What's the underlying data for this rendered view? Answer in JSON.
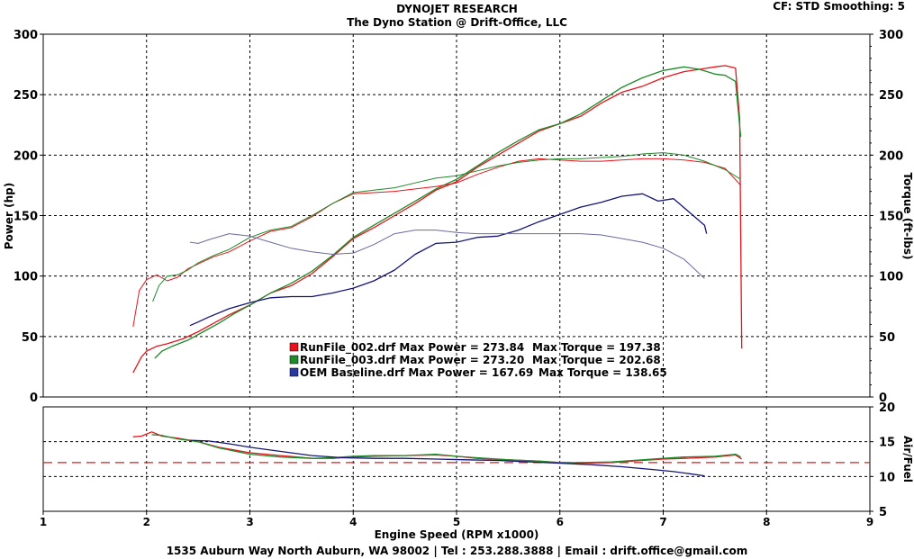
{
  "header": {
    "title": "DYNOJET RESEARCH",
    "subtitle": "The Dyno Station @ Drift-Office, LLC",
    "settings": "CF: STD  Smoothing: 5"
  },
  "footer": "1535 Auburn Way North Auburn, WA 98002 | Tel : 253.288.3888 | Email : drift.office@gmail.com",
  "colors": {
    "run002": "#e8141c",
    "run003": "#1f8a2a",
    "oem": "#141478",
    "afr_target": "#d02020"
  },
  "legend": [
    {
      "text": "RunFile_002.drf Max Power = 273.84",
      "torque": "Max Torque = 197.38",
      "color": "#e8141c"
    },
    {
      "text": "RunFile_003.drf Max Power = 273.20",
      "torque": "Max Torque = 202.68",
      "color": "#1f8a2a"
    },
    {
      "text": "OEM Baseline.drf Max Power = 167.69",
      "torque": "Max Torque = 138.65",
      "color": "#2838a0"
    }
  ],
  "chart_data": [
    {
      "type": "line",
      "panel": "power-torque",
      "xlabel": "Engine Speed (RPM x1000)",
      "ylabel": "Power (hp)",
      "ylabel_right": "Torque (ft-lbs)",
      "xlim": [
        1,
        9
      ],
      "ylim": [
        0,
        300
      ],
      "x_ticks": [
        "1",
        "2",
        "3",
        "4",
        "5",
        "6",
        "7",
        "8",
        "9"
      ],
      "y_ticks": [
        "0",
        "50",
        "100",
        "150",
        "200",
        "250",
        "300"
      ],
      "grid": true,
      "series": [
        {
          "name": "RunFile_002.drf",
          "measure": "power",
          "color": "#e8141c",
          "x": [
            1.87,
            1.95,
            2.0,
            2.1,
            2.2,
            2.35,
            2.5,
            2.65,
            2.8,
            3.0,
            3.2,
            3.4,
            3.6,
            3.8,
            4.0,
            4.2,
            4.4,
            4.6,
            4.8,
            5.0,
            5.2,
            5.4,
            5.6,
            5.8,
            6.0,
            6.2,
            6.4,
            6.6,
            6.8,
            7.0,
            7.2,
            7.35,
            7.5,
            7.6,
            7.7,
            7.74,
            7.76
          ],
          "y": [
            20,
            33,
            38,
            42,
            44,
            48,
            54,
            61,
            68,
            76,
            86,
            92,
            102,
            116,
            131,
            140,
            150,
            160,
            171,
            178,
            190,
            200,
            210,
            220,
            226,
            232,
            243,
            252,
            257,
            264,
            269,
            271,
            273,
            274,
            272,
            230,
            40
          ]
        },
        {
          "name": "RunFile_003.drf",
          "measure": "power",
          "color": "#1f8a2a",
          "x": [
            2.08,
            2.15,
            2.25,
            2.4,
            2.55,
            2.7,
            2.85,
            3.0,
            3.2,
            3.4,
            3.6,
            3.8,
            4.0,
            4.2,
            4.4,
            4.6,
            4.8,
            5.0,
            5.2,
            5.4,
            5.6,
            5.8,
            6.0,
            6.2,
            6.4,
            6.6,
            6.8,
            7.0,
            7.2,
            7.35,
            7.5,
            7.6,
            7.7,
            7.75
          ],
          "y": [
            32,
            38,
            42,
            47,
            54,
            61,
            69,
            76,
            86,
            94,
            104,
            117,
            132,
            142,
            152,
            162,
            172,
            180,
            191,
            202,
            212,
            221,
            226,
            234,
            245,
            256,
            264,
            270,
            273,
            271,
            267,
            266,
            261,
            215
          ]
        },
        {
          "name": "OEM Baseline.drf",
          "measure": "power",
          "color": "#141478",
          "x": [
            2.42,
            2.5,
            2.6,
            2.8,
            3.0,
            3.2,
            3.4,
            3.6,
            3.8,
            4.0,
            4.2,
            4.4,
            4.6,
            4.8,
            5.0,
            5.2,
            5.4,
            5.6,
            5.8,
            6.0,
            6.2,
            6.4,
            6.6,
            6.8,
            6.95,
            7.1,
            7.25,
            7.4,
            7.42
          ],
          "y": [
            59,
            62,
            66,
            73,
            78,
            82,
            83,
            83,
            86,
            90,
            96,
            105,
            118,
            127,
            128,
            132,
            133,
            138,
            145,
            151,
            157,
            161,
            166,
            168,
            162,
            164,
            153,
            142,
            135
          ]
        },
        {
          "name": "RunFile_002.drf",
          "measure": "torque",
          "color": "#e8141c",
          "x": [
            1.87,
            1.93,
            2.0,
            2.1,
            2.2,
            2.3,
            2.4,
            2.5,
            2.65,
            2.8,
            3.0,
            3.2,
            3.4,
            3.6,
            3.8,
            4.0,
            4.2,
            4.4,
            4.6,
            4.8,
            5.0,
            5.2,
            5.4,
            5.6,
            5.8,
            6.0,
            6.2,
            6.4,
            6.6,
            6.8,
            7.0,
            7.2,
            7.4,
            7.6,
            7.75
          ],
          "y": [
            58,
            88,
            97,
            101,
            96,
            99,
            106,
            110,
            116,
            120,
            129,
            137,
            140,
            149,
            160,
            168,
            169,
            170,
            172,
            174,
            177,
            184,
            190,
            195,
            197,
            196,
            195,
            195,
            196,
            197,
            197,
            196,
            194,
            189,
            175
          ]
        },
        {
          "name": "RunFile_003.drf",
          "measure": "torque",
          "color": "#1f8a2a",
          "x": [
            2.06,
            2.12,
            2.2,
            2.3,
            2.4,
            2.5,
            2.65,
            2.8,
            3.0,
            3.2,
            3.4,
            3.6,
            3.8,
            4.0,
            4.2,
            4.4,
            4.6,
            4.8,
            5.0,
            5.2,
            5.4,
            5.6,
            5.8,
            6.0,
            6.2,
            6.4,
            6.6,
            6.8,
            7.0,
            7.2,
            7.4,
            7.6,
            7.75
          ],
          "y": [
            79,
            92,
            100,
            101,
            105,
            111,
            117,
            122,
            132,
            138,
            141,
            150,
            160,
            169,
            171,
            173,
            177,
            181,
            183,
            187,
            191,
            194,
            196,
            197,
            197,
            198,
            199,
            201,
            202,
            200,
            195,
            188,
            180
          ]
        },
        {
          "name": "OEM Baseline.drf",
          "measure": "torque",
          "color": "#6a6aa0",
          "x": [
            2.42,
            2.5,
            2.6,
            2.8,
            3.0,
            3.2,
            3.4,
            3.6,
            3.8,
            4.0,
            4.2,
            4.4,
            4.6,
            4.8,
            5.0,
            5.2,
            5.4,
            5.6,
            5.8,
            6.0,
            6.2,
            6.4,
            6.6,
            6.8,
            7.0,
            7.2,
            7.4
          ],
          "y": [
            128,
            127,
            130,
            135,
            133,
            128,
            123,
            120,
            118,
            119,
            126,
            135,
            138,
            138,
            136,
            135,
            135,
            135,
            135,
            135,
            135,
            134,
            131,
            128,
            123,
            114,
            98
          ]
        }
      ]
    },
    {
      "type": "line",
      "panel": "air-fuel",
      "ylabel": "Air/Fuel",
      "xlim": [
        1,
        9
      ],
      "ylim": [
        5,
        20
      ],
      "y_ticks": [
        "5",
        "10",
        "15",
        "20"
      ],
      "grid": true,
      "target": 12,
      "series": [
        {
          "name": "RunFile_002.drf",
          "color": "#e8141c",
          "x": [
            1.87,
            1.95,
            2.05,
            2.15,
            2.3,
            2.5,
            2.7,
            3.0,
            3.3,
            3.6,
            3.8,
            4.0,
            4.2,
            4.5,
            4.8,
            5.0,
            5.2,
            5.5,
            5.8,
            6.0,
            6.2,
            6.5,
            6.8,
            7.0,
            7.2,
            7.5,
            7.7,
            7.76
          ],
          "y": [
            15.7,
            15.8,
            16.4,
            15.8,
            15.5,
            15.0,
            14.2,
            13.4,
            13.0,
            12.6,
            12.6,
            12.8,
            12.9,
            13.0,
            13.1,
            12.9,
            12.6,
            12.4,
            12.2,
            12.0,
            11.9,
            12.0,
            12.3,
            12.5,
            12.6,
            12.8,
            13.1,
            12.5
          ]
        },
        {
          "name": "RunFile_003.drf",
          "color": "#1f8a2a",
          "x": [
            2.05,
            2.15,
            2.3,
            2.5,
            2.7,
            3.0,
            3.3,
            3.6,
            3.8,
            4.0,
            4.2,
            4.5,
            4.8,
            5.0,
            5.2,
            5.5,
            5.8,
            6.0,
            6.2,
            6.5,
            6.8,
            7.0,
            7.2,
            7.5,
            7.7,
            7.75
          ],
          "y": [
            16.0,
            15.9,
            15.4,
            15.0,
            14.1,
            13.2,
            12.8,
            12.6,
            12.7,
            12.9,
            13.0,
            13.0,
            13.2,
            12.9,
            12.7,
            12.4,
            12.2,
            12.0,
            12.0,
            12.1,
            12.4,
            12.6,
            12.8,
            12.9,
            13.2,
            12.8
          ]
        },
        {
          "name": "OEM Baseline.drf",
          "color": "#141478",
          "x": [
            2.42,
            2.6,
            2.8,
            3.0,
            3.3,
            3.6,
            3.9,
            4.2,
            4.5,
            4.8,
            5.1,
            5.4,
            5.7,
            6.0,
            6.3,
            6.6,
            6.9,
            7.1,
            7.25,
            7.4
          ],
          "y": [
            15.2,
            15.1,
            14.7,
            14.2,
            13.6,
            13.0,
            12.7,
            12.6,
            12.6,
            12.5,
            12.4,
            12.3,
            12.1,
            11.9,
            11.7,
            11.4,
            11.0,
            10.7,
            10.4,
            10.1
          ]
        }
      ]
    }
  ]
}
